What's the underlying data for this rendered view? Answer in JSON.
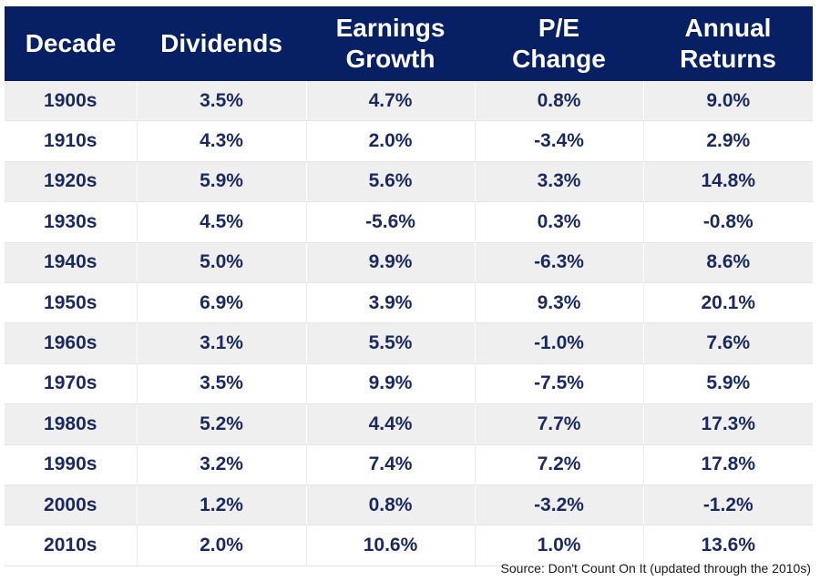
{
  "chart_data": {
    "type": "table",
    "columns": [
      [
        "Decade"
      ],
      [
        "Dividends"
      ],
      [
        "Earnings",
        "Growth"
      ],
      [
        "P/E",
        "Change"
      ],
      [
        "Annual",
        "Returns"
      ]
    ],
    "rows": [
      [
        "1900s",
        "3.5%",
        "4.7%",
        "0.8%",
        "9.0%"
      ],
      [
        "1910s",
        "4.3%",
        "2.0%",
        "-3.4%",
        "2.9%"
      ],
      [
        "1920s",
        "5.9%",
        "5.6%",
        "3.3%",
        "14.8%"
      ],
      [
        "1930s",
        "4.5%",
        "-5.6%",
        "0.3%",
        "-0.8%"
      ],
      [
        "1940s",
        "5.0%",
        "9.9%",
        "-6.3%",
        "8.6%"
      ],
      [
        "1950s",
        "6.9%",
        "3.9%",
        "9.3%",
        "20.1%"
      ],
      [
        "1960s",
        "3.1%",
        "5.5%",
        "-1.0%",
        "7.6%"
      ],
      [
        "1970s",
        "3.5%",
        "9.9%",
        "-7.5%",
        "5.9%"
      ],
      [
        "1980s",
        "5.2%",
        "4.4%",
        "7.7%",
        "17.3%"
      ],
      [
        "1990s",
        "3.2%",
        "7.4%",
        "7.2%",
        "17.8%"
      ],
      [
        "2000s",
        "1.2%",
        "0.8%",
        "-3.2%",
        "-1.2%"
      ],
      [
        "2010s",
        "2.0%",
        "10.6%",
        "1.0%",
        "13.6%"
      ]
    ],
    "source": "Source: Don't Count On It (updated through the 2010s)",
    "colors": {
      "header_bg": "#062063",
      "header_text": "#ffffff",
      "cell_text": "#1b2a5e",
      "stripe": "#efefef"
    }
  }
}
